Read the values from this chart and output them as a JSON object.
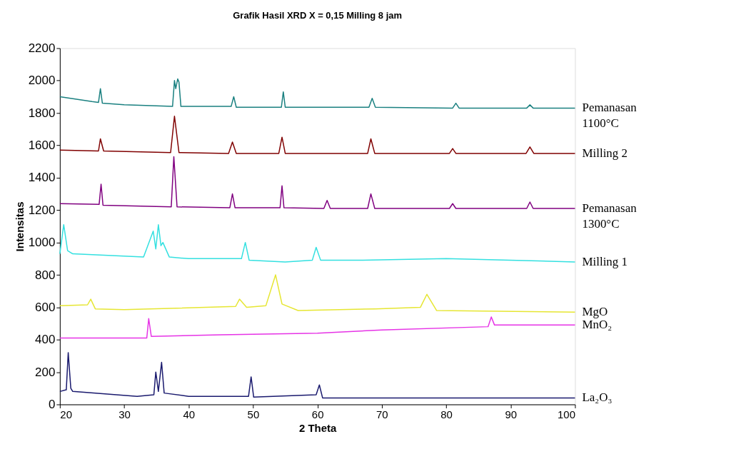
{
  "chart_data": {
    "type": "line",
    "title": "Grafik Hasil XRD X = 0,15 Milling 8 jam",
    "xlabel": "2 Theta",
    "ylabel": "Intensitas",
    "xlim": [
      20,
      100
    ],
    "xticks": [
      20,
      30,
      40,
      50,
      60,
      70,
      80,
      90,
      100
    ],
    "ylim": [
      0,
      2200
    ],
    "yticks": [
      0,
      200,
      400,
      600,
      800,
      1000,
      1200,
      1400,
      1600,
      1800,
      2000,
      2200
    ],
    "legend": false,
    "grid": false,
    "marker": "none",
    "line_style": "solid",
    "series": [
      {
        "name": "Pemanasan 1100°C",
        "color": "#1a8080",
        "x": [
          20,
          25,
          26,
          26.3,
          26.6,
          30,
          37.5,
          37.8,
          38,
          38.3,
          38.5,
          38.8,
          46.6,
          47,
          47.4,
          54.4,
          54.7,
          55,
          68,
          68.5,
          69,
          81,
          81.5,
          82,
          92.5,
          93,
          93.5,
          100
        ],
        "values": [
          1900,
          1870,
          1865,
          1950,
          1860,
          1850,
          1840,
          2000,
          1950,
          2010,
          1990,
          1840,
          1840,
          1900,
          1835,
          1835,
          1930,
          1835,
          1835,
          1890,
          1835,
          1830,
          1860,
          1830,
          1830,
          1850,
          1830,
          1830
        ]
      },
      {
        "name": "Milling 2",
        "color": "#800000",
        "x": [
          20,
          26,
          26.3,
          26.8,
          37.2,
          37.8,
          38.5,
          46.2,
          46.8,
          47.4,
          54,
          54.5,
          55,
          67.8,
          68.3,
          68.9,
          80.5,
          81,
          81.5,
          92.4,
          93,
          93.6,
          100
        ],
        "values": [
          1570,
          1565,
          1640,
          1565,
          1555,
          1780,
          1555,
          1550,
          1620,
          1550,
          1550,
          1650,
          1550,
          1550,
          1640,
          1550,
          1550,
          1580,
          1550,
          1550,
          1590,
          1550,
          1550
        ]
      },
      {
        "name": "Pemanasan 1300°C",
        "color": "#800080",
        "x": [
          20,
          26.1,
          26.4,
          26.7,
          37.3,
          37.7,
          38.2,
          46.4,
          46.8,
          47.2,
          54.2,
          54.5,
          54.8,
          61,
          61.5,
          62,
          67.8,
          68.3,
          68.9,
          80.5,
          81,
          81.5,
          92.5,
          93,
          93.5,
          100
        ],
        "values": [
          1240,
          1235,
          1360,
          1230,
          1220,
          1530,
          1220,
          1215,
          1300,
          1215,
          1215,
          1350,
          1215,
          1210,
          1260,
          1210,
          1210,
          1300,
          1210,
          1210,
          1240,
          1210,
          1210,
          1250,
          1210,
          1210
        ]
      },
      {
        "name": "Milling 1",
        "color": "#33e0e0",
        "x": [
          20,
          20.6,
          21.2,
          22,
          33,
          34.5,
          34.9,
          35.3,
          35.7,
          36,
          37,
          40,
          48.2,
          48.8,
          49.4,
          55,
          59.2,
          59.8,
          60.5,
          67,
          80,
          100
        ],
        "values": [
          930,
          1110,
          950,
          930,
          910,
          1070,
          960,
          1110,
          980,
          1000,
          910,
          900,
          900,
          1000,
          890,
          880,
          890,
          970,
          890,
          890,
          900,
          880
        ]
      },
      {
        "name": "MgO",
        "color": "#e6e632",
        "x": [
          20,
          24.3,
          24.8,
          25.5,
          30,
          47.3,
          47.9,
          49,
          52,
          53.5,
          54.5,
          57,
          69,
          76,
          77,
          78.5,
          100
        ],
        "values": [
          610,
          615,
          650,
          590,
          585,
          605,
          650,
          600,
          610,
          800,
          620,
          580,
          590,
          600,
          680,
          580,
          570
        ]
      },
      {
        "name": "MnO₂",
        "color": "#e633e6",
        "x": [
          20,
          33.5,
          33.8,
          34.2,
          45,
          60,
          70,
          86.5,
          87,
          87.5,
          100
        ],
        "values": [
          410,
          410,
          530,
          420,
          430,
          440,
          460,
          480,
          540,
          490,
          490
        ]
      },
      {
        "name": "La₂O₃",
        "color": "#1a1a6e",
        "x": [
          20,
          21,
          21.3,
          21.7,
          22,
          32,
          34.6,
          34.9,
          35.3,
          35.8,
          36.2,
          40,
          49.3,
          49.7,
          50.1,
          59.8,
          60.3,
          60.8,
          70,
          100
        ],
        "values": [
          80,
          90,
          320,
          100,
          80,
          50,
          60,
          200,
          80,
          260,
          70,
          50,
          50,
          170,
          45,
          60,
          120,
          40,
          40,
          40
        ]
      }
    ]
  }
}
